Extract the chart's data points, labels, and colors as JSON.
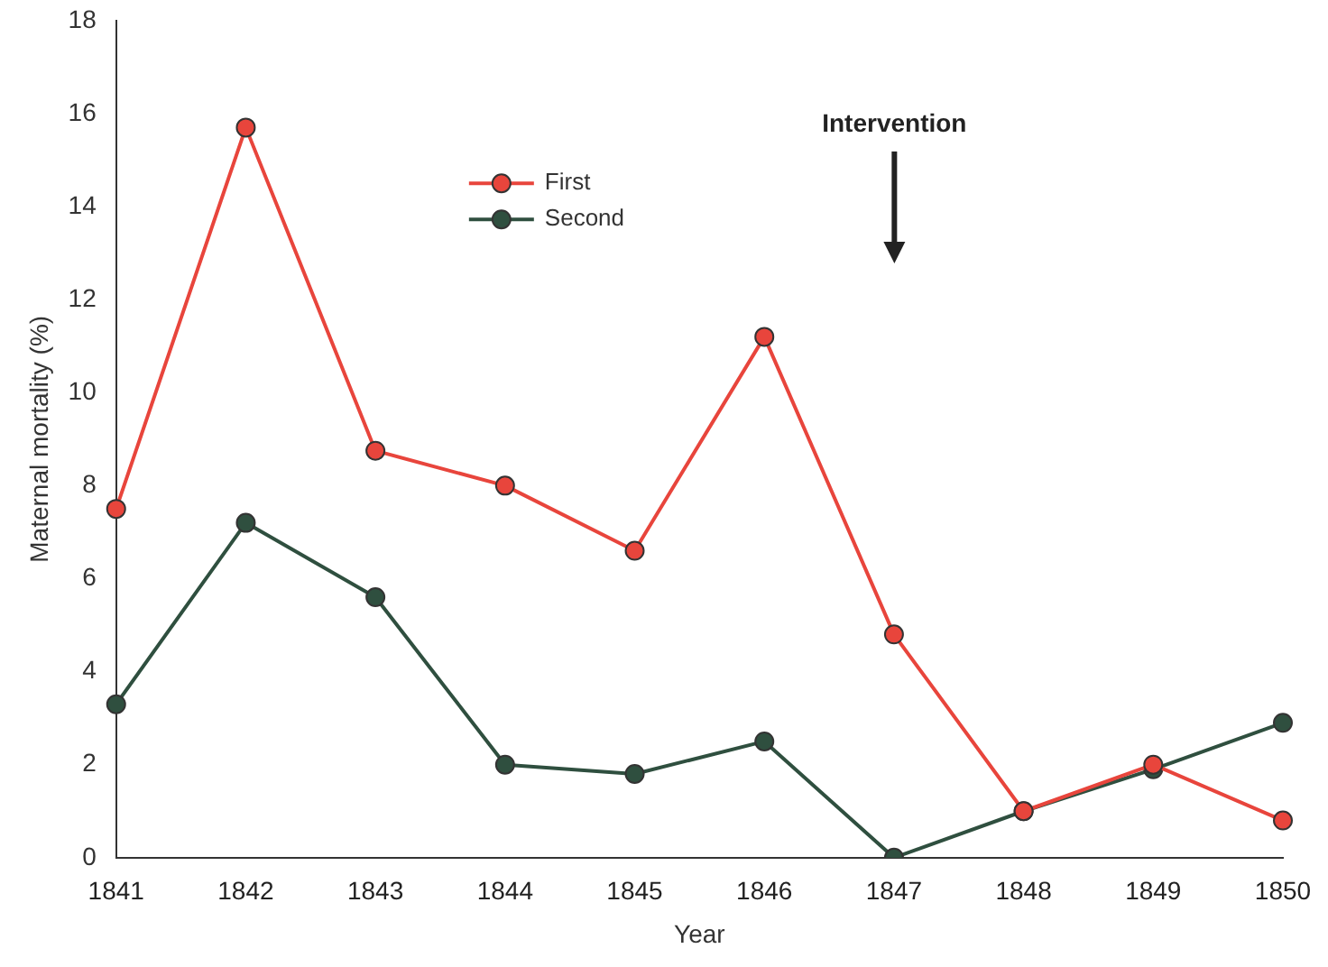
{
  "chart_data": {
    "type": "line",
    "xlabel": "Year",
    "ylabel": "Maternal mortality (%)",
    "categories": [
      "1841",
      "1842",
      "1843",
      "1844",
      "1845",
      "1846",
      "1847",
      "1848",
      "1849",
      "1850"
    ],
    "series": [
      {
        "name": "First",
        "color": "#e8453c",
        "values": [
          7.5,
          15.7,
          8.75,
          8.0,
          6.6,
          11.2,
          4.8,
          1.0,
          2.0,
          0.8
        ]
      },
      {
        "name": "Second",
        "color": "#2f4f3f",
        "values": [
          3.3,
          7.2,
          5.6,
          2.0,
          1.8,
          2.5,
          0,
          1.0,
          1.9,
          2.9
        ]
      }
    ],
    "ylim": [
      0,
      18
    ],
    "yticks": [
      0,
      2,
      4,
      6,
      8,
      10,
      12,
      14,
      16,
      18
    ],
    "annotations": [
      "Intervention"
    ],
    "grid": false,
    "legend": "top",
    "marker": "circle",
    "line_style": "solid"
  }
}
